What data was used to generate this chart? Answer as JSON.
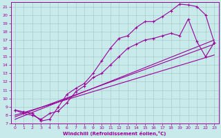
{
  "xlabel": "Windchill (Refroidissement éolien,°C)",
  "bg_color": "#c8eaea",
  "grid_color": "#a8cccc",
  "line_color": "#990099",
  "xlim": [
    -0.5,
    23.5
  ],
  "ylim": [
    7,
    21.5
  ],
  "xticks": [
    0,
    1,
    2,
    3,
    4,
    5,
    6,
    7,
    8,
    9,
    10,
    11,
    12,
    13,
    14,
    15,
    16,
    17,
    18,
    19,
    20,
    21,
    22,
    23
  ],
  "yticks": [
    7,
    8,
    9,
    10,
    11,
    12,
    13,
    14,
    15,
    16,
    17,
    18,
    19,
    20,
    21
  ],
  "curve1_x": [
    0,
    1,
    2,
    3,
    4,
    5,
    6,
    7,
    8,
    9,
    10,
    11,
    12,
    13,
    14,
    15,
    16,
    17,
    18,
    19,
    20,
    21,
    22,
    23
  ],
  "curve1_y": [
    8.6,
    8.4,
    8.2,
    7.3,
    7.5,
    9.0,
    10.5,
    11.2,
    11.8,
    13.0,
    14.5,
    16.0,
    17.2,
    17.5,
    18.5,
    19.2,
    19.2,
    19.8,
    20.5,
    21.3,
    21.2,
    21.0,
    20.0,
    16.7
  ],
  "curve2_x": [
    0,
    1,
    2,
    3,
    4,
    5,
    6,
    7,
    8,
    9,
    10,
    11,
    12,
    13,
    14,
    15,
    16,
    17,
    18,
    19,
    20,
    21,
    22,
    23
  ],
  "curve2_y": [
    8.6,
    8.2,
    8.0,
    7.5,
    8.2,
    8.5,
    9.5,
    10.8,
    11.5,
    12.5,
    13.0,
    14.0,
    15.0,
    16.0,
    16.5,
    17.0,
    17.2,
    17.5,
    17.8,
    17.5,
    19.5,
    16.8,
    15.0,
    16.7
  ],
  "line1_x": [
    0,
    23
  ],
  "line1_y": [
    7.8,
    16.5
  ],
  "line2_x": [
    0,
    23
  ],
  "line2_y": [
    8.0,
    15.2
  ],
  "line3_x": [
    0,
    23
  ],
  "line3_y": [
    7.5,
    17.0
  ]
}
